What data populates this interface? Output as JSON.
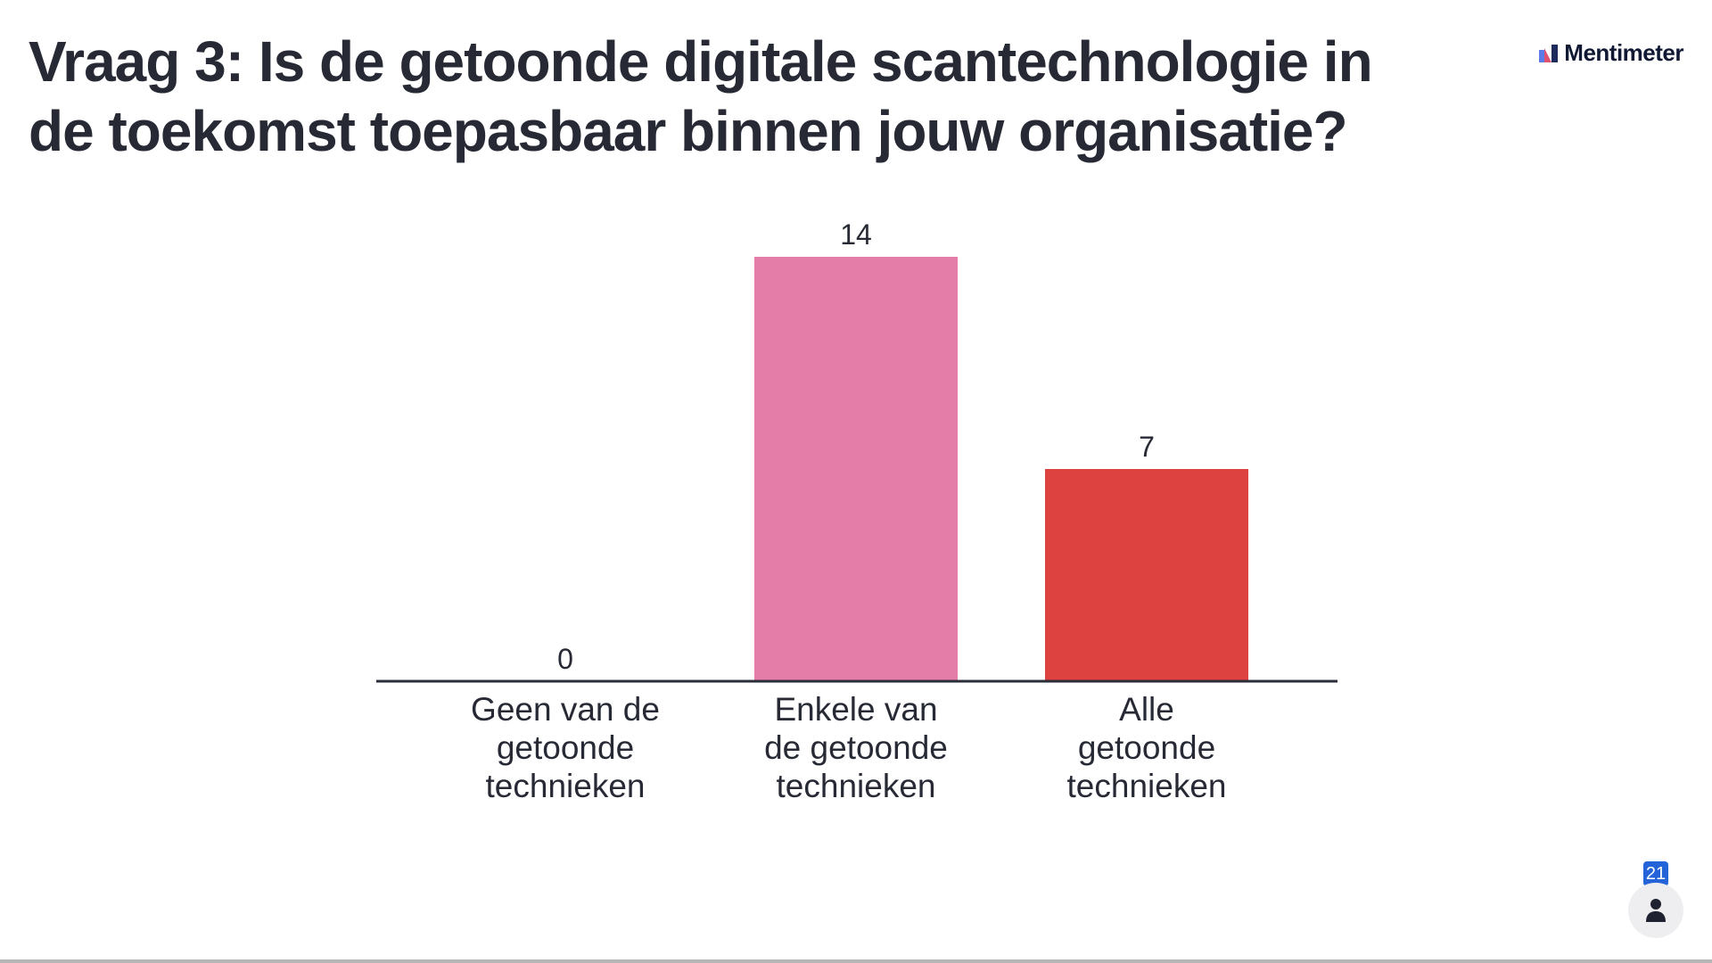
{
  "slide": {
    "title": "Vraag 3: Is de getoonde digitale scantechnologie in de toekomst toepasbaar binnen jouw organisatie?"
  },
  "brand": {
    "name": "Mentimeter",
    "logo_icon": "mentimeter-logo-icon"
  },
  "participants": {
    "count": "21",
    "icon": "person-icon"
  },
  "chart_data": {
    "type": "bar",
    "categories": [
      [
        "Geen van de",
        "getoonde",
        "technieken"
      ],
      [
        "Enkele van",
        "de getoonde",
        "technieken"
      ],
      [
        "Alle",
        "getoonde",
        "technieken"
      ]
    ],
    "values": [
      0,
      14,
      7
    ],
    "colors": [
      "#4a6fe3",
      "#e47ea9",
      "#dd4240"
    ],
    "ylim": [
      0,
      14
    ],
    "grid": false,
    "legend": "none"
  }
}
